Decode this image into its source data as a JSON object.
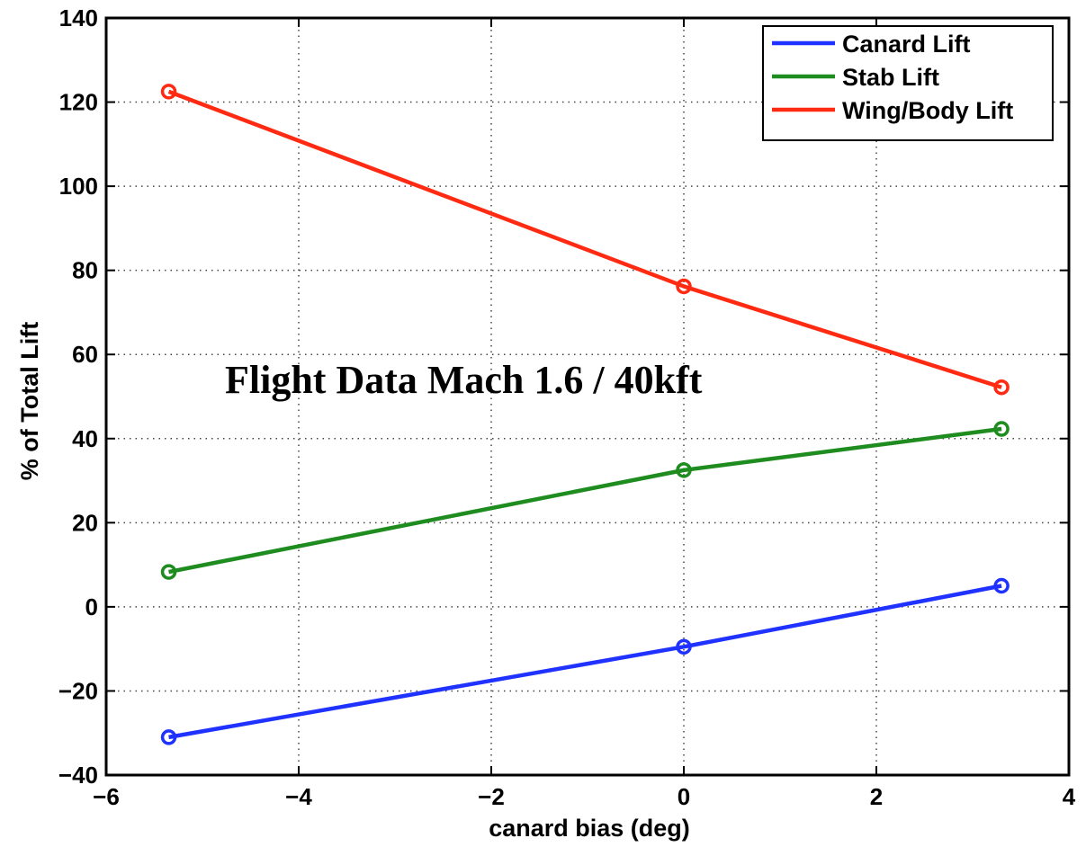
{
  "chart_data": {
    "type": "line",
    "title": "",
    "xlabel": "canard bias (deg)",
    "ylabel": "% of Total Lift",
    "xlim": [
      -6,
      4
    ],
    "ylim": [
      -40,
      140
    ],
    "xticks": [
      -6,
      -4,
      -2,
      0,
      2,
      4
    ],
    "yticks": [
      -40,
      -20,
      0,
      20,
      40,
      60,
      80,
      100,
      120,
      140
    ],
    "xtick_labels": [
      "−6",
      "−4",
      "−2",
      "0",
      "2",
      "4"
    ],
    "ytick_labels": [
      "−40",
      "−20",
      "0",
      "20",
      "40",
      "60",
      "80",
      "100",
      "120",
      "140"
    ],
    "grid": true,
    "legend_position": "top-right",
    "annotation": "Flight Data  Mach 1.6 / 40kft",
    "x": [
      -5.35,
      0,
      3.3
    ],
    "series": [
      {
        "name": "Canard Lift",
        "color": "#1f32ff",
        "values": [
          -31,
          -9.5,
          5
        ]
      },
      {
        "name": "Stab Lift",
        "color": "#1e8c1e",
        "values": [
          8.3,
          32.5,
          42.3
        ]
      },
      {
        "name": "Wing/Body Lift",
        "color": "#ff2a12",
        "values": [
          122.5,
          76.2,
          52.2
        ]
      }
    ]
  }
}
